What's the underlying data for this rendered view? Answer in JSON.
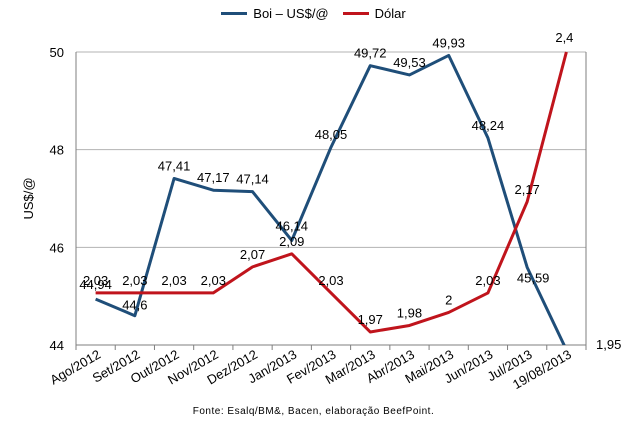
{
  "chart_data": {
    "type": "line",
    "categories": [
      "Ago/2012",
      "Set/2012",
      "Out/2012",
      "Nov/2012",
      "Dez/2012",
      "Jan/2013",
      "Fev/2013",
      "Mar/2013",
      "Abr/2013",
      "Mai/2013",
      "Jun/2013",
      "Jul/2013",
      "19/08/2013"
    ],
    "ylabel": "US$/@",
    "ylim": [
      44,
      50
    ],
    "yticks": [
      "44",
      "46",
      "48",
      "50"
    ],
    "y2lim": [
      1.95,
      2.4
    ],
    "y2ticks": [
      "1,95"
    ],
    "grid": true,
    "legend_position": "top",
    "series": [
      {
        "name": "Boi – US$/@",
        "color": "#1F4E79",
        "axis": "left",
        "values": [
          44.94,
          44.6,
          47.41,
          47.17,
          47.14,
          46.14,
          48.05,
          49.72,
          49.53,
          49.93,
          48.24,
          45.59,
          43.9
        ],
        "labels": [
          "44,94",
          "44,6",
          "47,41",
          "47,17",
          "47,14",
          "46,14",
          "48,05",
          "49,72",
          "49,53",
          "49,93",
          "48,24",
          "45,59",
          ""
        ]
      },
      {
        "name": "Dólar",
        "color": "#C0141C",
        "axis": "right",
        "values": [
          2.03,
          2.03,
          2.03,
          2.03,
          2.07,
          2.09,
          2.03,
          1.97,
          1.98,
          2.0,
          2.03,
          2.17,
          2.4
        ],
        "labels": [
          "2,03",
          "2,03",
          "2,03",
          "2,03",
          "2,07",
          "2,09",
          "2,03",
          "1,97",
          "1,98",
          "2",
          "2,03",
          "2,17",
          "2,4"
        ]
      }
    ]
  },
  "source": "Fonte: Esalq/BM&, Bacen, elaboração BeefPoint."
}
